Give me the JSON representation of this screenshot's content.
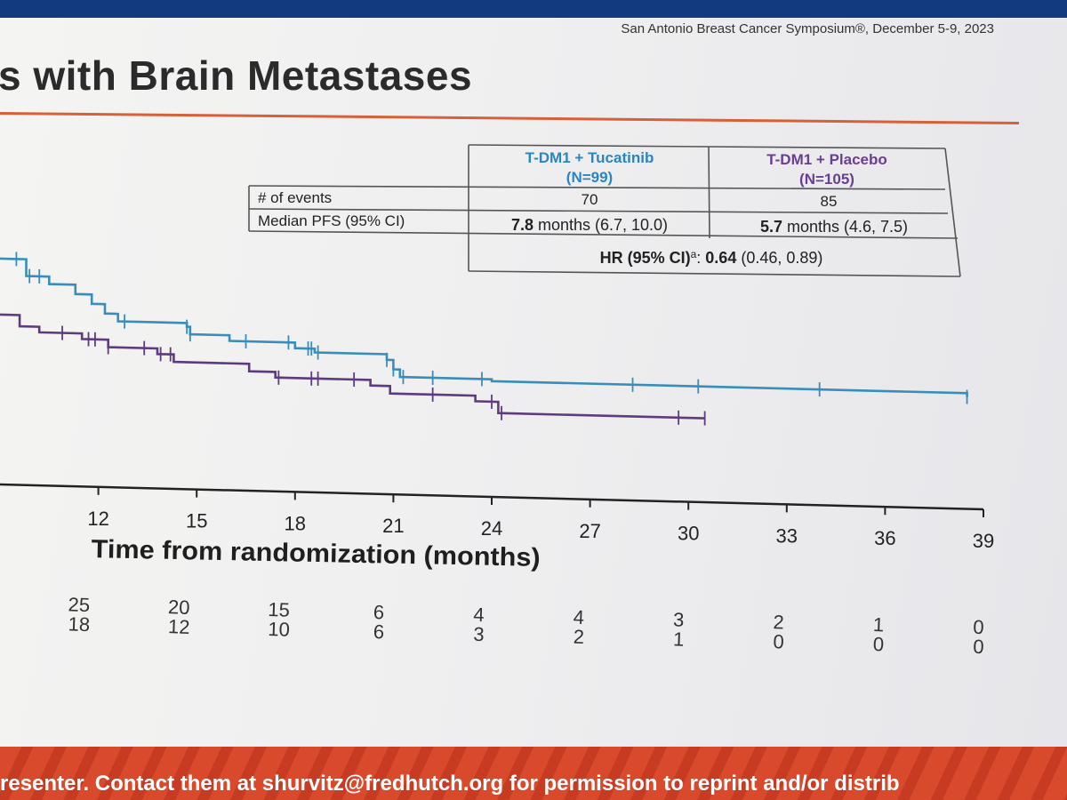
{
  "header": {
    "conference": "San Antonio Breast Cancer Symposium®, December 5-9, 2023"
  },
  "slide_title": "s with Brain Metastases",
  "footer": {
    "text": "resenter. Contact them at shurvitz@fredhutch.org for permission to reprint and/or distrib"
  },
  "table": {
    "col1_name": "T-DM1 + Tucatinib",
    "col1_n": "(N=99)",
    "col2_name": "T-DM1 + Placebo",
    "col2_n": "(N=105)",
    "row1_label": "# of events",
    "row1_val1": "70",
    "row1_val2": "85",
    "row2_label": "Median PFS (95% CI)",
    "row2_val1_bold": "7.8",
    "row2_val1_rest": " months (6.7, 10.0)",
    "row2_val2_bold": "5.7",
    "row2_val2_rest": " months (4.6, 7.5)",
    "hr_label": "HR (95% CI)",
    "hr_sup": "a",
    "hr_colon": ": ",
    "hr_bold": "0.64",
    "hr_rest": " (0.46, 0.89)"
  },
  "chart_data": {
    "type": "line",
    "title": "",
    "xlabel": "Time from randomization (months)",
    "ylabel": "",
    "xlim": [
      9,
      39
    ],
    "x_ticks": [
      12,
      15,
      18,
      21,
      24,
      27,
      30,
      33,
      36,
      39
    ],
    "series": [
      {
        "name": "T-DM1 + Tucatinib",
        "color": "#3a8db8",
        "steps": [
          [
            9,
            0.605
          ],
          [
            9.4,
            0.605
          ],
          [
            9.8,
            0.56
          ],
          [
            10.5,
            0.54
          ],
          [
            11.3,
            0.515
          ],
          [
            11.8,
            0.49
          ],
          [
            12.2,
            0.465
          ],
          [
            12.6,
            0.445
          ],
          [
            13.4,
            0.445
          ],
          [
            14.7,
            0.435
          ],
          [
            14.8,
            0.415
          ],
          [
            16.0,
            0.4
          ],
          [
            18.0,
            0.385
          ],
          [
            18.6,
            0.375
          ],
          [
            20.8,
            0.36
          ],
          [
            21.0,
            0.335
          ],
          [
            21.2,
            0.315
          ],
          [
            24.0,
            0.31
          ],
          [
            38.5,
            0.3
          ]
        ],
        "censor_x": [
          9.5,
          9.9,
          10.2,
          12.8,
          14.7,
          14.8,
          16.5,
          17.8,
          18.4,
          18.5,
          18.7,
          20.8,
          21.0,
          21.3,
          22.2,
          23.7,
          28.3,
          30.3,
          34.0,
          38.5
        ]
      },
      {
        "name": "T-DM1 + Placebo",
        "color": "#5e3b7e",
        "steps": [
          [
            9,
            0.455
          ],
          [
            9.3,
            0.455
          ],
          [
            9.6,
            0.425
          ],
          [
            10.2,
            0.41
          ],
          [
            11.5,
            0.395
          ],
          [
            12.3,
            0.375
          ],
          [
            13.8,
            0.36
          ],
          [
            14.3,
            0.34
          ],
          [
            16.6,
            0.32
          ],
          [
            17.4,
            0.305
          ],
          [
            20.3,
            0.29
          ],
          [
            20.9,
            0.27
          ],
          [
            23.5,
            0.255
          ],
          [
            24.2,
            0.225
          ],
          [
            30.5,
            0.225
          ]
        ],
        "censor_x": [
          10.9,
          11.7,
          11.9,
          12.3,
          13.4,
          13.9,
          14.2,
          17.5,
          18.5,
          18.7,
          19.8,
          22.2,
          24.0,
          24.3,
          29.7,
          30.5
        ]
      }
    ],
    "at_risk_columns": [
      {
        "x": 12,
        "row1": "25",
        "row2": "18"
      },
      {
        "x": 15,
        "row1": "20",
        "row2": "12"
      },
      {
        "x": 18,
        "row1": "15",
        "row2": "10"
      },
      {
        "x": 21,
        "row1": "6",
        "row2": "6"
      },
      {
        "x": 24,
        "row1": "4",
        "row2": "3"
      },
      {
        "x": 27,
        "row1": "4",
        "row2": "2"
      },
      {
        "x": 30,
        "row1": "3",
        "row2": "1"
      },
      {
        "x": 33,
        "row1": "2",
        "row2": "0"
      },
      {
        "x": 36,
        "row1": "1",
        "row2": "0"
      },
      {
        "x": 39,
        "row1": "0",
        "row2": "0"
      }
    ]
  }
}
